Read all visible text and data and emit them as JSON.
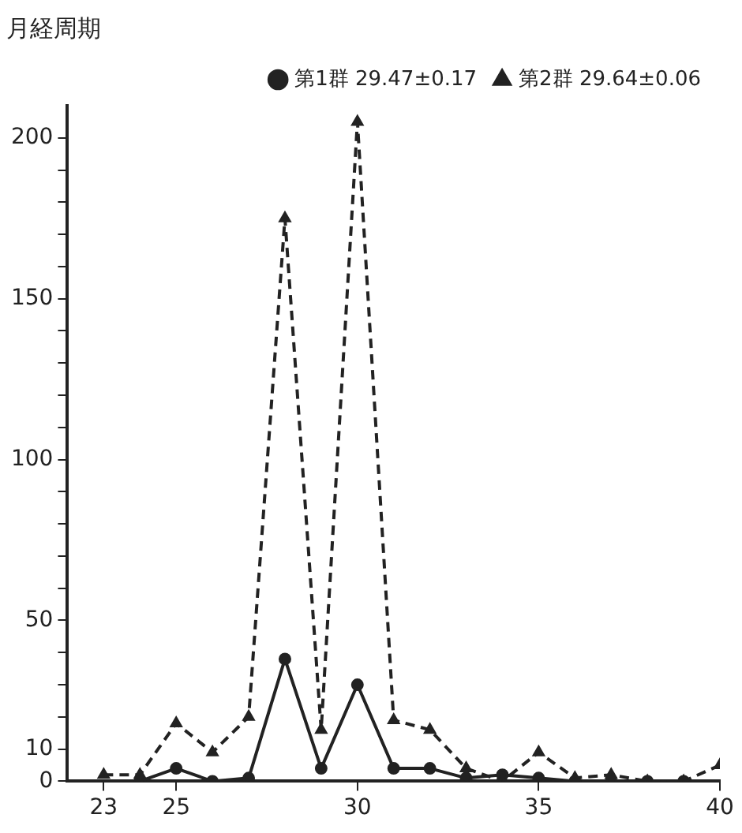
{
  "chart_data": {
    "type": "line",
    "title": "月経周期",
    "x": [
      23,
      24,
      25,
      26,
      27,
      28,
      29,
      30,
      31,
      32,
      33,
      34,
      35,
      36,
      37,
      38,
      39,
      40
    ],
    "series": [
      {
        "name": "第1群 29.47±0.17",
        "color": "#222222",
        "marker": "circle",
        "line_style": "solid",
        "values": [
          null,
          0,
          4,
          0,
          1,
          38,
          4,
          30,
          4,
          4,
          1,
          2,
          1,
          0,
          0,
          0,
          0,
          null
        ]
      },
      {
        "name": "第2群 29.64±0.06",
        "color": "#222222",
        "marker": "triangle",
        "line_style": "dashed",
        "values": [
          2,
          2,
          18,
          9,
          20,
          175,
          16,
          205,
          19,
          16,
          4,
          0,
          9,
          1,
          2,
          0,
          0,
          5
        ]
      }
    ],
    "xlim": [
      22,
      40
    ],
    "xticks": [
      23,
      25,
      30,
      35,
      40
    ],
    "ylim": [
      0,
      210
    ],
    "yticks": [
      0,
      10,
      {
        "value": 20,
        "label": null
      },
      {
        "value": 30,
        "label": null
      },
      {
        "value": 40,
        "label": null
      },
      50,
      {
        "value": 60,
        "label": null
      },
      {
        "value": 70,
        "label": null
      },
      {
        "value": 80,
        "label": null
      },
      {
        "value": 90,
        "label": null
      },
      100,
      {
        "value": 110,
        "label": null
      },
      {
        "value": 120,
        "label": null
      },
      {
        "value": 130,
        "label": null
      },
      {
        "value": 140,
        "label": null
      },
      150,
      {
        "value": 160,
        "label": null
      },
      {
        "value": 170,
        "label": null
      },
      {
        "value": 180,
        "label": null
      },
      {
        "value": 190,
        "label": null
      },
      200
    ],
    "grid": false,
    "legend": "top right"
  }
}
